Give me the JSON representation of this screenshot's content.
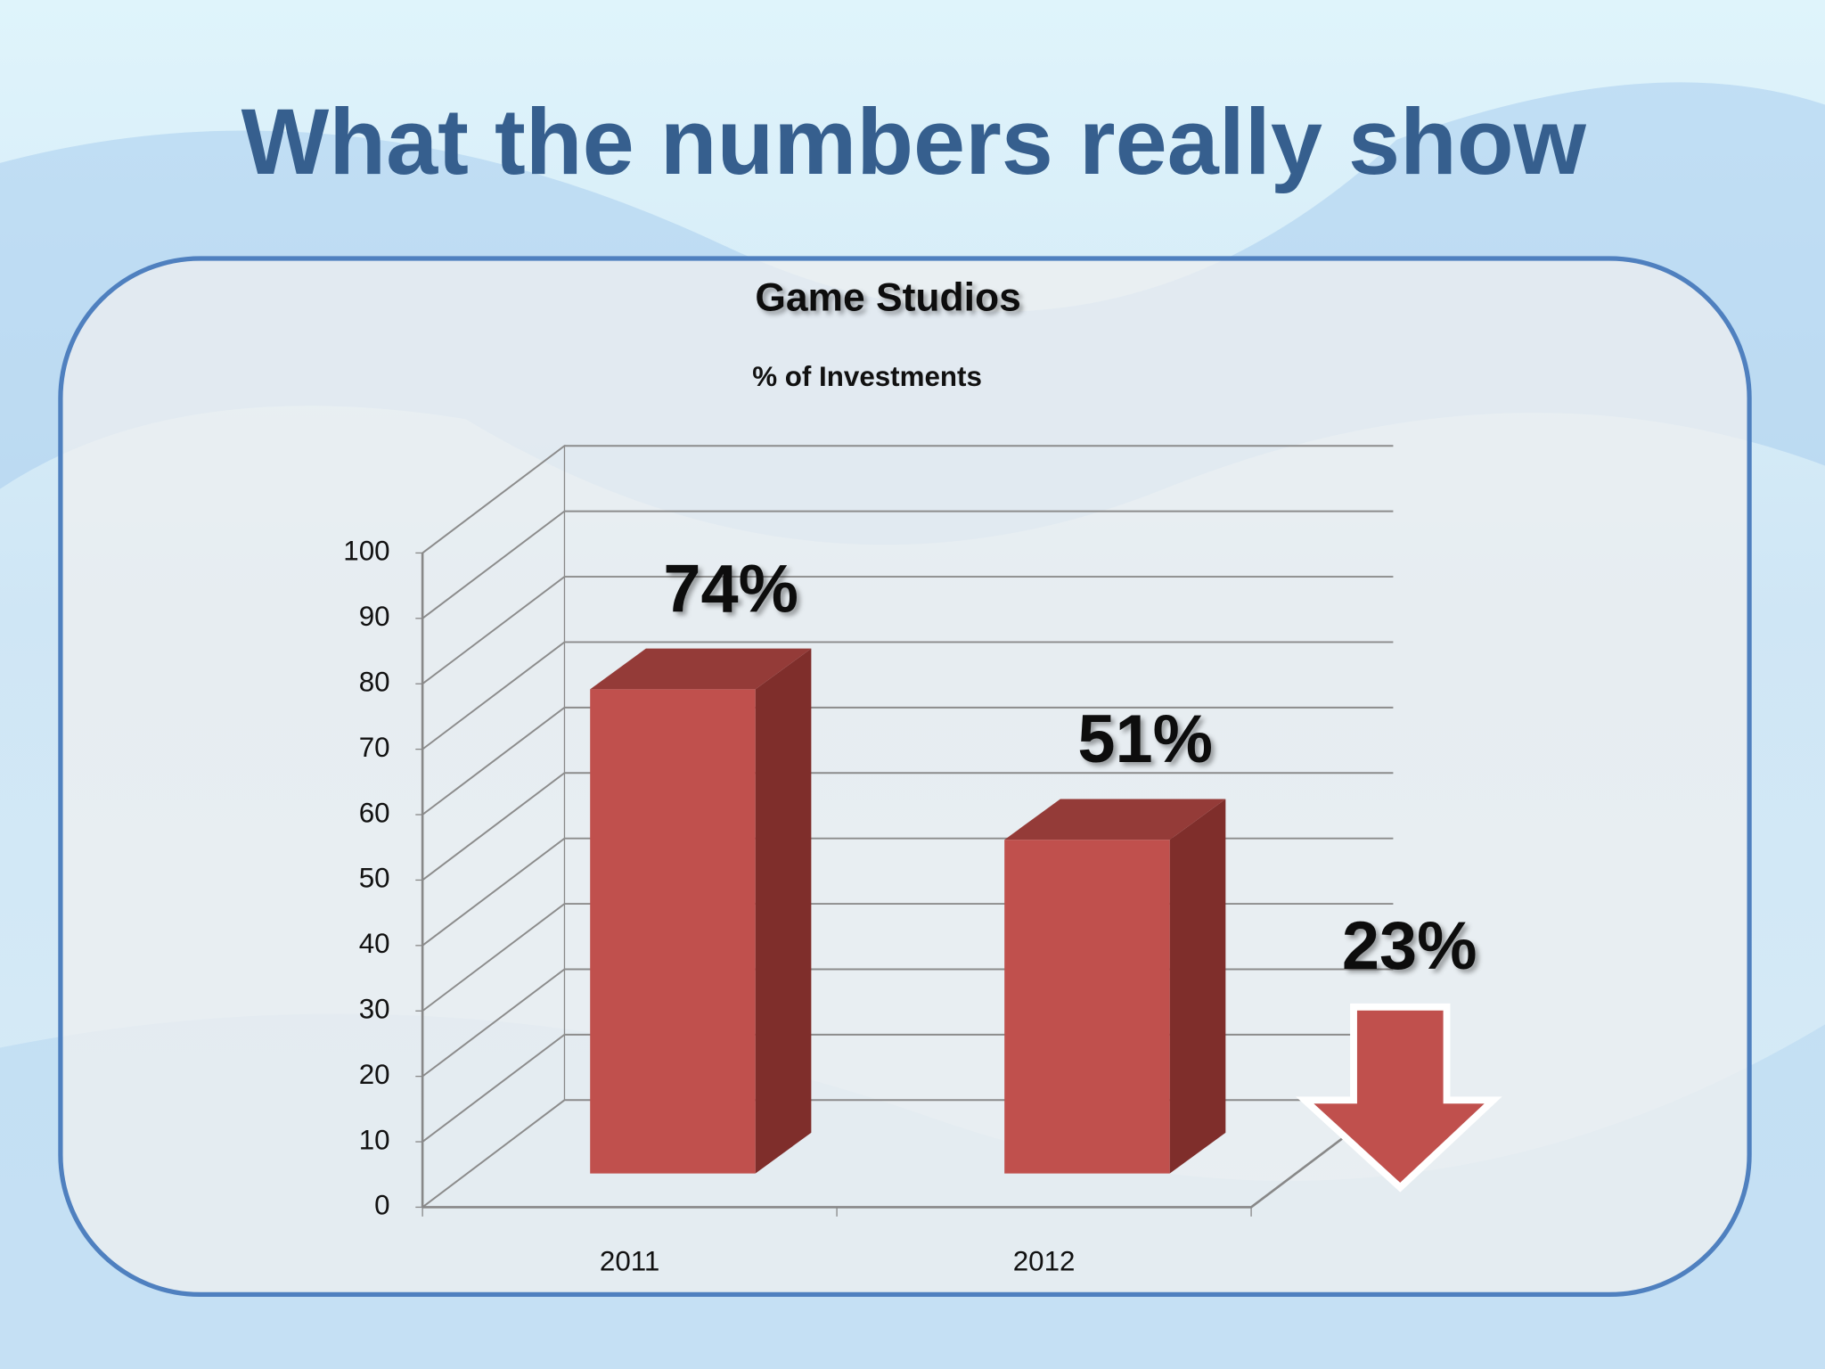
{
  "chart_data": {
    "type": "bar3d",
    "title": "What the numbers really show",
    "chart_title": "Game Studios",
    "subtitle": "% of Investments",
    "categories": [
      "2011",
      "2012"
    ],
    "values": [
      74,
      51
    ],
    "value_labels": [
      "74%",
      "51%"
    ],
    "color": "#c0504d",
    "annotation": "23%",
    "ylim": [
      0,
      100
    ],
    "yticks": [
      0,
      10,
      20,
      30,
      40,
      50,
      60,
      70,
      80,
      90,
      100
    ],
    "grid": true
  }
}
